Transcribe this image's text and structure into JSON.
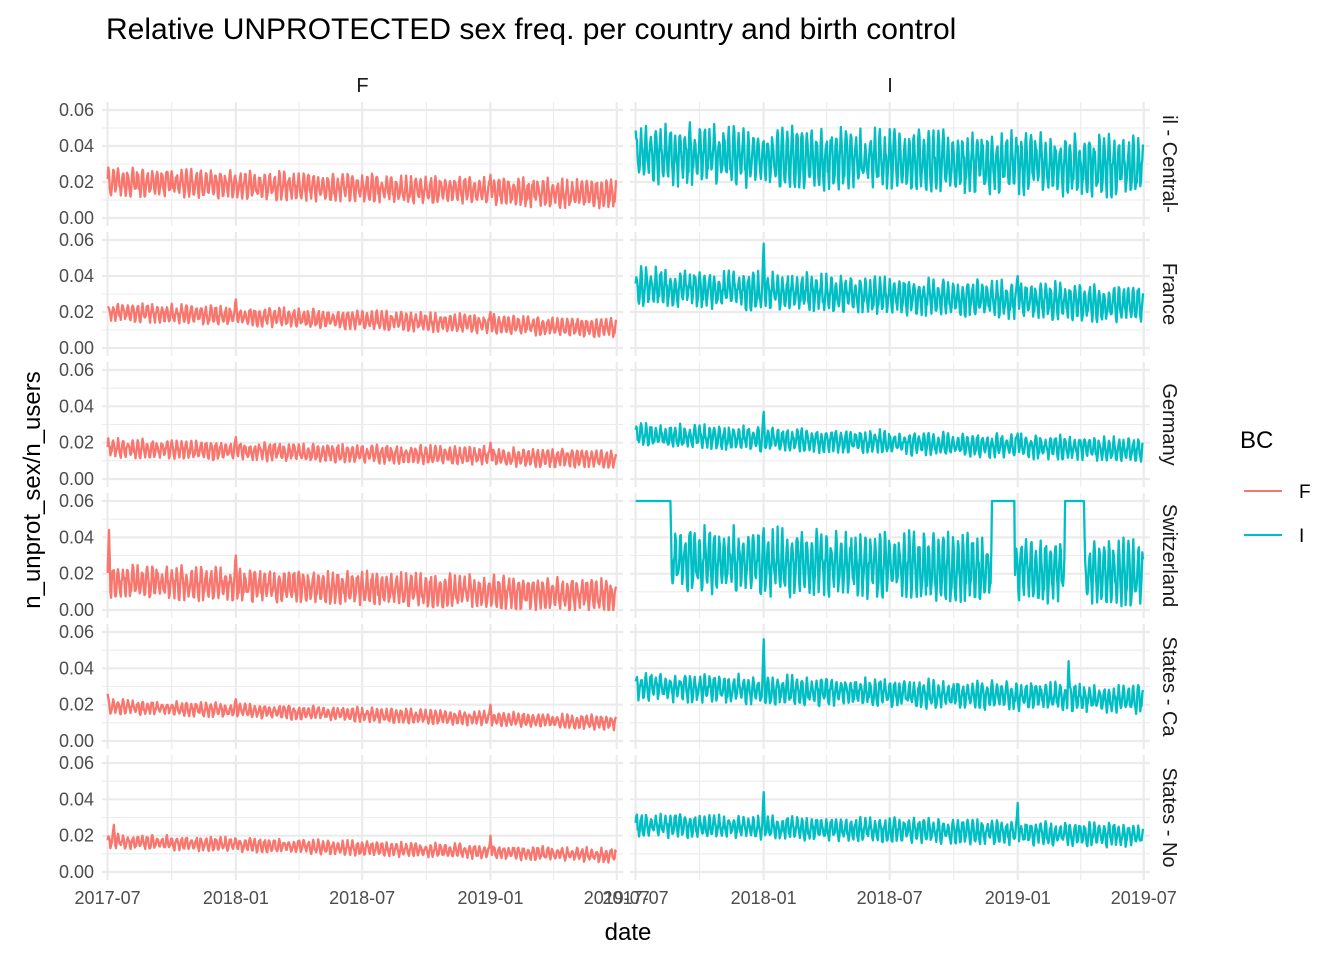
{
  "chart_data": {
    "type": "line",
    "title": "Relative UNPROTECTED sex freq. per country and birth control",
    "xlabel": "date",
    "ylabel": "n_unprot_sex/n_users",
    "facet_columns": [
      "F",
      "I"
    ],
    "facet_rows": [
      "il - Central-",
      "France",
      "Germany",
      "Switzerland",
      "States - Ca",
      "States - No"
    ],
    "x_ticks": [
      "2017-07",
      "2018-01",
      "2018-07",
      "2019-01",
      "2019-07"
    ],
    "y_ticks": [
      "0.00",
      "0.02",
      "0.04",
      "0.06"
    ],
    "xlim": [
      "2017-06-23",
      "2019-07-10"
    ],
    "ylim": [
      0,
      0.06
    ],
    "grid": true,
    "legend": {
      "title": "BC",
      "position": "right",
      "entries": [
        "F",
        "I"
      ]
    },
    "colors": {
      "F": "#F8766D",
      "I": "#00BFC4"
    },
    "series_summary": [
      {
        "panel": "il - Central- / F",
        "start": 0.02,
        "end": 0.013,
        "amplitude": 0.006,
        "spikes": {
          "2018-01-01": 0.021,
          "2019-01-01": 0.024
        }
      },
      {
        "panel": "il - Central- / I",
        "start": 0.036,
        "end": 0.028,
        "amplitude": 0.013,
        "spikes": {
          "2018-04-30": 0.046,
          "2019-01-01": 0.04
        }
      },
      {
        "panel": "France / F",
        "start": 0.02,
        "end": 0.011,
        "amplitude": 0.004,
        "spikes": {
          "2018-01-01": 0.027,
          "2019-01-01": 0.02
        }
      },
      {
        "panel": "France / I",
        "start": 0.034,
        "end": 0.024,
        "amplitude": 0.008,
        "spikes": {
          "2018-01-01": 0.058,
          "2019-01-01": 0.04
        }
      },
      {
        "panel": "Germany / F",
        "start": 0.017,
        "end": 0.011,
        "amplitude": 0.004,
        "spikes": {
          "2018-01-01": 0.023,
          "2019-01-01": 0.02
        }
      },
      {
        "panel": "Germany / I",
        "start": 0.024,
        "end": 0.016,
        "amplitude": 0.005,
        "spikes": {
          "2018-01-01": 0.037,
          "2019-01-01": 0.025
        }
      },
      {
        "panel": "Switzerland / F",
        "start": 0.016,
        "end": 0.008,
        "amplitude": 0.007,
        "spikes": {
          "2017-07-03": 0.044,
          "2018-01-01": 0.03
        }
      },
      {
        "panel": "Switzerland / I",
        "start": 0.028,
        "end": 0.02,
        "amplitude": 0.014,
        "spikes": {
          "2018-01-01": 0.045
        },
        "capped_intervals": [
          [
            "2017-06-26",
            "2017-08-20"
          ],
          [
            "2018-11-25",
            "2018-12-27"
          ],
          [
            "2019-03-10",
            "2019-04-06"
          ]
        ]
      },
      {
        "panel": "States - Ca / F",
        "start": 0.019,
        "end": 0.01,
        "amplitude": 0.003,
        "spikes": {
          "2017-07-01": 0.026,
          "2018-01-01": 0.023,
          "2019-01-01": 0.02
        }
      },
      {
        "panel": "States - Ca / I",
        "start": 0.03,
        "end": 0.023,
        "amplitude": 0.006,
        "spikes": {
          "2018-01-01": 0.056,
          "2019-03-15": 0.044
        }
      },
      {
        "panel": "States - No / F",
        "start": 0.017,
        "end": 0.009,
        "amplitude": 0.003,
        "spikes": {
          "2017-07-10": 0.026,
          "2019-01-01": 0.02
        }
      },
      {
        "panel": "States - No / I",
        "start": 0.026,
        "end": 0.02,
        "amplitude": 0.005,
        "spikes": {
          "2018-01-01": 0.044,
          "2019-01-01": 0.038
        }
      }
    ]
  }
}
